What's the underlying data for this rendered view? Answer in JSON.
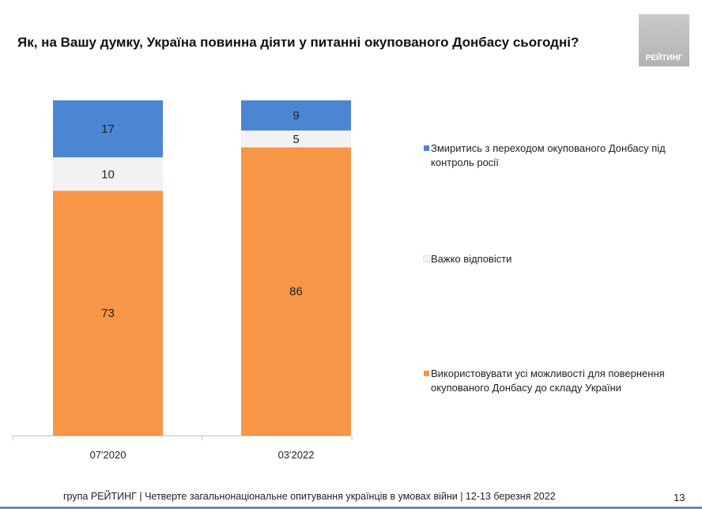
{
  "title": "Як, на Вашу думку, Україна повинна діяти у питанні окупованого Донбасу сьогодні?",
  "logo": {
    "text": "РЕЙТИНГ"
  },
  "footer": "група РЕЙТИНГ | Четверте загальнонаціональне опитування українців в умовах війни | 12-13 березня 2022",
  "page_number": "13",
  "chart_data": {
    "type": "bar",
    "stacked": true,
    "percent_scale": true,
    "categories": [
      "07'2020",
      "03'2022"
    ],
    "series": [
      {
        "name": "Використовувати усі можливості для повернення окупованого Донбасу до складу України",
        "values": [
          73,
          86
        ],
        "color": "#f79646"
      },
      {
        "name": "Важко відповісти",
        "values": [
          10,
          5
        ],
        "color": "#f2f2f2"
      },
      {
        "name": "Змиритись з переходом окупованого Донбасу під контроль росії",
        "values": [
          17,
          9
        ],
        "color": "#4a86d2"
      }
    ],
    "legend": [
      {
        "label": "Змиритись з переходом окупованого Донбасу під контроль росії",
        "color": "#4a86d2"
      },
      {
        "label": "Важко відповісти",
        "color": "#f2f2f2"
      },
      {
        "label": "Використовувати усі можливості для повернення окупованого Донбасу до складу України",
        "color": "#f79646"
      }
    ],
    "ylim": [
      0,
      100
    ],
    "grid": false,
    "legend_position": "right"
  }
}
